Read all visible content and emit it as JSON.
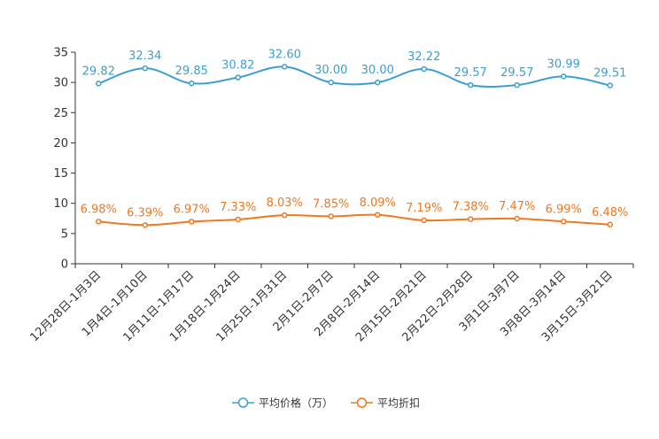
{
  "chart_data": {
    "type": "line",
    "categories": [
      "12月28日-1月3日",
      "1月4日-1月10日",
      "1月11日-1月17日",
      "1月18日-1月24日",
      "1月25日-1月31日",
      "2月1日-2月7日",
      "2月8日-2月14日",
      "2月15日-2月21日",
      "2月22日-2月28日",
      "3月1日-3月7日",
      "3月8日-3月14日",
      "3月15日-3月21日"
    ],
    "ylim": [
      0,
      35
    ],
    "yticks": [
      0,
      5,
      10,
      15,
      20,
      25,
      30,
      35
    ],
    "series": [
      {
        "name": "平均价格（万）",
        "color": "#3d9fcf",
        "values": [
          29.82,
          32.34,
          29.85,
          30.82,
          32.6,
          30.0,
          30.0,
          32.22,
          29.57,
          29.57,
          30.99,
          29.51
        ],
        "labels": [
          "29.82",
          "32.34",
          "29.85",
          "30.82",
          "32.60",
          "30.00",
          "30.00",
          "32.22",
          "29.57",
          "29.57",
          "30.99",
          "29.51"
        ]
      },
      {
        "name": "平均折扣",
        "color": "#f07820",
        "values": [
          6.98,
          6.39,
          6.97,
          7.33,
          8.03,
          7.85,
          8.09,
          7.19,
          7.38,
          7.47,
          6.99,
          6.48
        ],
        "labels": [
          "6.98%",
          "6.39%",
          "6.97%",
          "7.33%",
          "8.03%",
          "7.85%",
          "8.09%",
          "7.19%",
          "7.38%",
          "7.47%",
          "6.99%",
          "6.48%"
        ]
      }
    ],
    "legend_position": "bottom-center",
    "grid": false
  }
}
